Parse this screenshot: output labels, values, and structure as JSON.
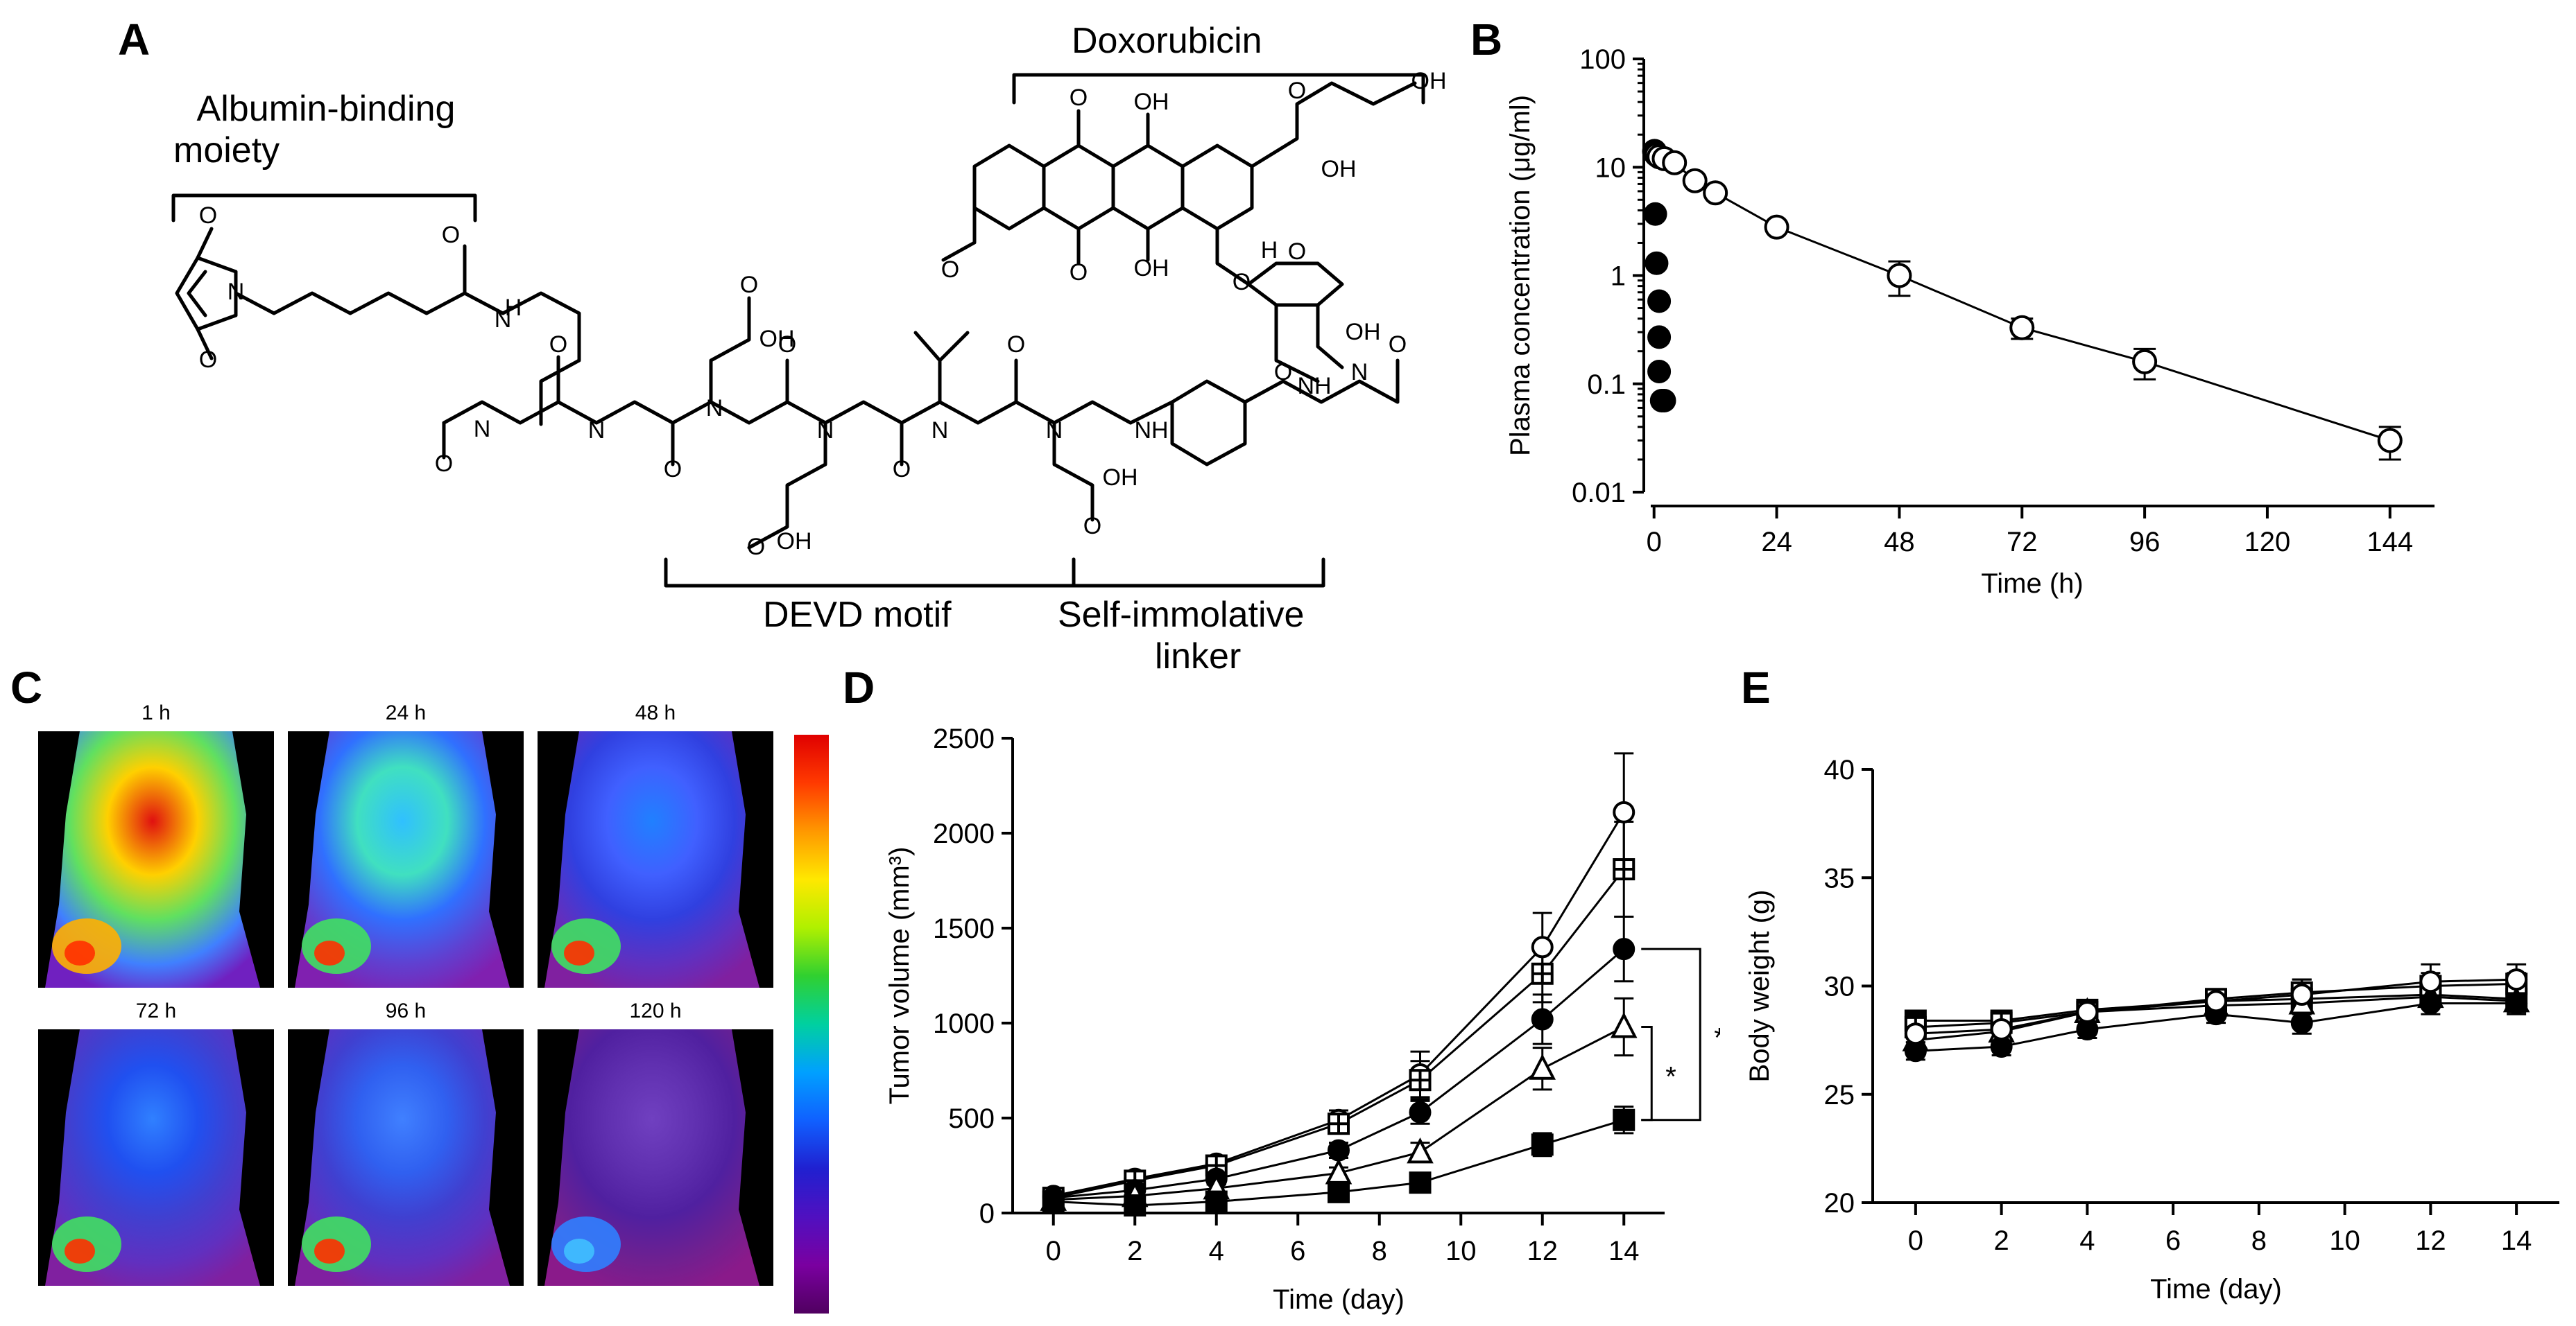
{
  "panel_a": {
    "letter": "A",
    "albumin_label_line1": "Albumin-binding",
    "albumin_label_line2": "moiety",
    "dox_label": "Doxorubicin",
    "devd_label": "DEVD motif",
    "linker_label_line1": "Self-immolative",
    "linker_label_line2": "linker"
  },
  "panel_c": {
    "letter": "C",
    "times": [
      "1 h",
      "24 h",
      "48 h",
      "72 h",
      "96 h",
      "120 h"
    ]
  },
  "chart_data": [
    {
      "panel": "B",
      "type": "scatter",
      "ylabel": "Plasma concentration (μg/ml)",
      "xlabel": "Time (h)",
      "yscale": "log",
      "ylim": [
        0.01,
        100
      ],
      "xlim": [
        -2,
        150
      ],
      "xticks": [
        "0",
        "24",
        "48",
        "72",
        "96",
        "120",
        "144"
      ],
      "yticks": [
        "0.01",
        "0.1",
        "1",
        "10",
        "100"
      ],
      "series": [
        {
          "name": "open",
          "marker": "open-circle",
          "connected": true,
          "x": [
            0.1,
            0.25,
            0.5,
            1,
            2,
            4,
            8,
            12,
            24,
            48,
            72,
            96,
            144
          ],
          "y": [
            14,
            13.5,
            13,
            12.5,
            12,
            11,
            7.5,
            5.8,
            2.8,
            1.0,
            0.33,
            0.16,
            0.03
          ],
          "err": [
            null,
            null,
            null,
            null,
            null,
            null,
            null,
            null,
            null,
            0.35,
            0.07,
            0.05,
            0.01
          ]
        },
        {
          "name": "filled",
          "marker": "filled-circle",
          "connected": false,
          "x": [
            0.25,
            0.5,
            1,
            1,
            1,
            1.5,
            2
          ],
          "y": [
            3.7,
            1.3,
            0.58,
            0.27,
            0.13,
            0.07,
            0.07
          ]
        }
      ]
    },
    {
      "panel": "D",
      "type": "line",
      "ylabel": "Tumor volume (mm³)",
      "xlabel": "Time (day)",
      "ylim": [
        0,
        2500
      ],
      "xlim": [
        -1,
        15
      ],
      "xticks": [
        "0",
        "2",
        "4",
        "6",
        "8",
        "10",
        "12",
        "14"
      ],
      "yticks": [
        "0",
        "500",
        "1000",
        "1500",
        "2000",
        "2500"
      ],
      "x": [
        0,
        2,
        4,
        7,
        9,
        12,
        14
      ],
      "series": [
        {
          "name": "open-circle",
          "marker": "open-circle",
          "values": [
            90,
            180,
            260,
            490,
            730,
            1400,
            2110
          ],
          "err": [
            20,
            30,
            40,
            50,
            120,
            180,
            310
          ]
        },
        {
          "name": "open-square-cross",
          "marker": "open-square-cross",
          "values": [
            80,
            170,
            250,
            470,
            700,
            1260,
            1810
          ],
          "err": [
            20,
            30,
            40,
            50,
            100,
            150,
            250
          ]
        },
        {
          "name": "filled-circle",
          "marker": "filled-circle",
          "values": [
            80,
            120,
            180,
            330,
            530,
            1020,
            1390
          ],
          "err": [
            20,
            20,
            30,
            40,
            60,
            130,
            170
          ]
        },
        {
          "name": "open-triangle",
          "marker": "open-triangle",
          "values": [
            70,
            90,
            130,
            210,
            320,
            760,
            980
          ],
          "err": [
            20,
            20,
            20,
            30,
            50,
            110,
            150
          ]
        },
        {
          "name": "filled-square",
          "marker": "filled-square",
          "values": [
            60,
            40,
            60,
            110,
            160,
            360,
            490
          ],
          "err": [
            20,
            10,
            20,
            20,
            30,
            60,
            70
          ]
        }
      ],
      "annotations": [
        {
          "text": "**",
          "between": [
            "filled-circle",
            "filled-square"
          ]
        },
        {
          "text": "*",
          "between": [
            "open-triangle",
            "filled-square"
          ]
        }
      ]
    },
    {
      "panel": "E",
      "type": "line",
      "ylabel": "Body weight (g)",
      "xlabel": "Time (day)",
      "ylim": [
        20,
        40
      ],
      "xlim": [
        -1,
        15
      ],
      "xticks": [
        "0",
        "2",
        "4",
        "6",
        "8",
        "10",
        "12",
        "14"
      ],
      "yticks": [
        "20",
        "25",
        "30",
        "35",
        "40"
      ],
      "x": [
        0,
        2,
        4,
        7,
        9,
        12,
        14
      ],
      "series": [
        {
          "name": "filled-square",
          "marker": "filled-square",
          "values": [
            28.4,
            28.4,
            28.9,
            29.3,
            29.4,
            29.6,
            29.4
          ],
          "err": [
            0.3,
            0.4,
            0.3,
            0.4,
            0.4,
            0.5,
            0.5
          ]
        },
        {
          "name": "open-square-cross",
          "marker": "open-square-cross",
          "values": [
            28.1,
            28.3,
            28.8,
            29.4,
            29.7,
            30.0,
            30.1
          ],
          "err": [
            0.3,
            0.4,
            0.3,
            0.4,
            0.6,
            0.6,
            0.5
          ]
        },
        {
          "name": "open-triangle",
          "marker": "open-triangle",
          "values": [
            27.5,
            27.9,
            28.8,
            29.1,
            29.2,
            29.5,
            29.3
          ],
          "err": [
            0.4,
            0.4,
            0.4,
            0.4,
            0.5,
            0.5,
            0.5
          ]
        },
        {
          "name": "filled-circle",
          "marker": "filled-circle",
          "values": [
            27.0,
            27.2,
            28.0,
            28.7,
            28.3,
            29.2,
            29.2
          ],
          "err": [
            0.4,
            0.4,
            0.4,
            0.4,
            0.5,
            0.5,
            0.5
          ]
        },
        {
          "name": "open-circle",
          "marker": "open-circle",
          "values": [
            27.8,
            28.0,
            28.8,
            29.3,
            29.6,
            30.2,
            30.3
          ],
          "err": [
            0.4,
            0.5,
            0.4,
            0.5,
            0.7,
            0.8,
            0.7
          ]
        }
      ]
    }
  ]
}
